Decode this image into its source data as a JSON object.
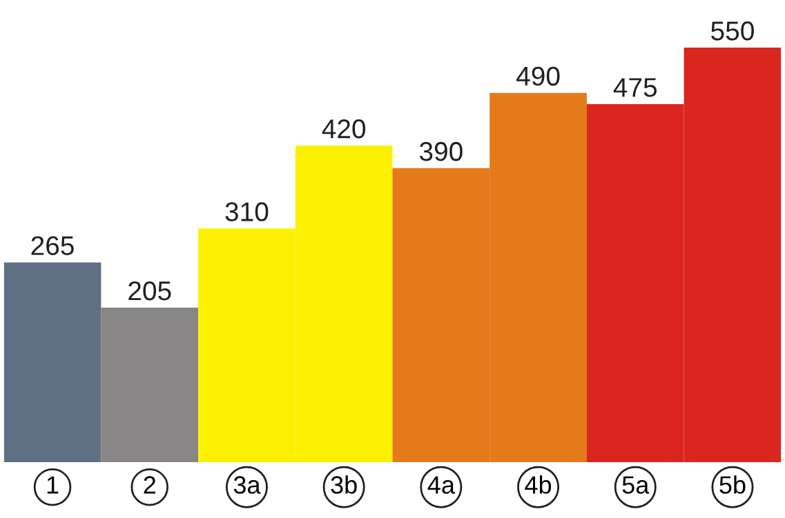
{
  "chart_data": {
    "type": "bar",
    "categories": [
      "1",
      "2",
      "3a",
      "3b",
      "4a",
      "4b",
      "5a",
      "5b"
    ],
    "values": [
      265,
      205,
      310,
      420,
      390,
      490,
      475,
      550
    ],
    "colors": [
      "#607085",
      "#878586",
      "#fcf100",
      "#fcf100",
      "#e57a1a",
      "#e57a1a",
      "#da261e",
      "#da261e"
    ],
    "data_labels": true,
    "grid": false,
    "legend": false,
    "tick_labels": "x"
  }
}
